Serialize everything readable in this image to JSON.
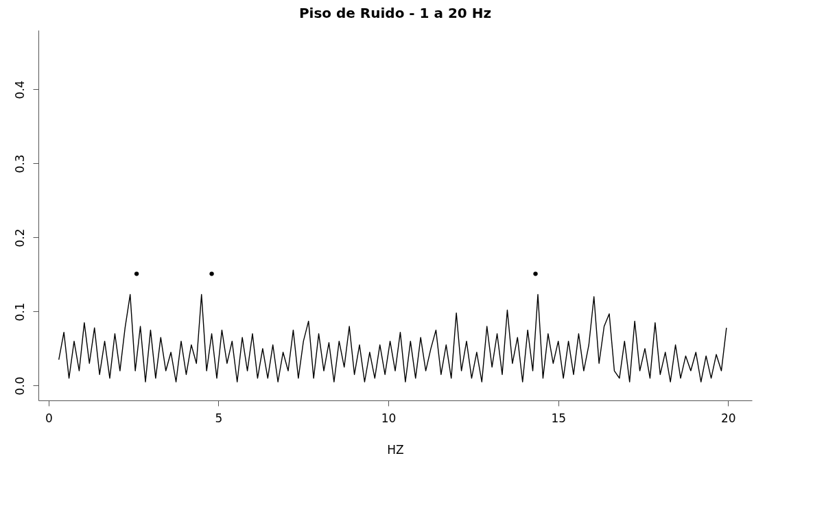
{
  "chart_data": {
    "type": "line",
    "title": "Piso de Ruido - 1 a 20 Hz",
    "xlabel": "HZ",
    "xlim": [
      -0.3,
      20.7
    ],
    "ylim": [
      -0.02,
      0.48
    ],
    "xticks": [
      0,
      5,
      10,
      15,
      20
    ],
    "yticks": [
      {
        "value": 0,
        "label": "0.0"
      },
      {
        "value": 0.1,
        "label": "0.1"
      },
      {
        "value": 0.2,
        "label": "0.2"
      },
      {
        "value": 0.3,
        "label": "0.3"
      },
      {
        "value": 0.4,
        "label": "0.4"
      }
    ],
    "grid": false,
    "line_style": "solid",
    "series": [
      {
        "color": "#000000",
        "x": [
          0.3,
          0.45,
          0.6,
          0.75,
          0.9,
          1.05,
          1.2,
          1.35,
          1.5,
          1.65,
          1.8,
          1.95,
          2.1,
          2.25,
          2.4,
          2.55,
          2.7,
          2.85,
          3.0,
          3.15,
          3.3,
          3.45,
          3.6,
          3.75,
          3.9,
          4.05,
          4.2,
          4.35,
          4.5,
          4.65,
          4.8,
          4.95,
          5.1,
          5.25,
          5.4,
          5.55,
          5.7,
          5.85,
          6.0,
          6.15,
          6.3,
          6.45,
          6.6,
          6.75,
          6.9,
          7.05,
          7.2,
          7.35,
          7.5,
          7.65,
          7.8,
          7.95,
          8.1,
          8.25,
          8.4,
          8.55,
          8.7,
          8.85,
          9.0,
          9.15,
          9.3,
          9.45,
          9.6,
          9.75,
          9.9,
          10.05,
          10.2,
          10.35,
          10.5,
          10.65,
          10.8,
          10.95,
          11.1,
          11.25,
          11.4,
          11.55,
          11.7,
          11.85,
          12.0,
          12.15,
          12.3,
          12.45,
          12.6,
          12.75,
          12.9,
          13.05,
          13.2,
          13.35,
          13.5,
          13.65,
          13.8,
          13.95,
          14.1,
          14.25,
          14.4,
          14.55,
          14.7,
          14.85,
          15.0,
          15.15,
          15.3,
          15.45,
          15.6,
          15.75,
          15.9,
          16.05,
          16.2,
          16.35,
          16.5,
          16.65,
          16.8,
          16.95,
          17.1,
          17.25,
          17.4,
          17.55,
          17.7,
          17.85,
          18.0,
          18.15,
          18.3,
          18.45,
          18.6,
          18.75,
          18.9,
          19.05,
          19.2,
          19.35,
          19.5,
          19.65,
          19.8,
          19.95
        ],
        "values": [
          0.035,
          0.072,
          0.01,
          0.06,
          0.02,
          0.085,
          0.03,
          0.078,
          0.015,
          0.06,
          0.01,
          0.07,
          0.02,
          0.078,
          0.123,
          0.02,
          0.08,
          0.005,
          0.075,
          0.01,
          0.065,
          0.02,
          0.045,
          0.005,
          0.06,
          0.015,
          0.055,
          0.03,
          0.123,
          0.02,
          0.07,
          0.01,
          0.075,
          0.03,
          0.06,
          0.005,
          0.065,
          0.02,
          0.07,
          0.01,
          0.05,
          0.01,
          0.055,
          0.005,
          0.045,
          0.02,
          0.075,
          0.01,
          0.06,
          0.087,
          0.01,
          0.07,
          0.02,
          0.058,
          0.005,
          0.06,
          0.025,
          0.08,
          0.015,
          0.055,
          0.005,
          0.045,
          0.01,
          0.055,
          0.015,
          0.06,
          0.02,
          0.072,
          0.005,
          0.06,
          0.01,
          0.065,
          0.02,
          0.05,
          0.075,
          0.015,
          0.055,
          0.01,
          0.098,
          0.02,
          0.06,
          0.01,
          0.045,
          0.005,
          0.08,
          0.025,
          0.07,
          0.015,
          0.102,
          0.03,
          0.065,
          0.005,
          0.075,
          0.02,
          0.123,
          0.01,
          0.07,
          0.03,
          0.06,
          0.01,
          0.06,
          0.015,
          0.07,
          0.02,
          0.055,
          0.12,
          0.03,
          0.08,
          0.097,
          0.02,
          0.01,
          0.06,
          0.005,
          0.087,
          0.02,
          0.05,
          0.01,
          0.085,
          0.015,
          0.045,
          0.005,
          0.055,
          0.01,
          0.04,
          0.02,
          0.045,
          0.005,
          0.04,
          0.01,
          0.042,
          0.02,
          0.078
        ]
      },
      {
        "type": "scatter",
        "color": "#000000",
        "marker": "circle",
        "x": [
          2.59,
          4.8,
          14.33
        ],
        "values": [
          0.151,
          0.151,
          0.151
        ]
      }
    ]
  }
}
